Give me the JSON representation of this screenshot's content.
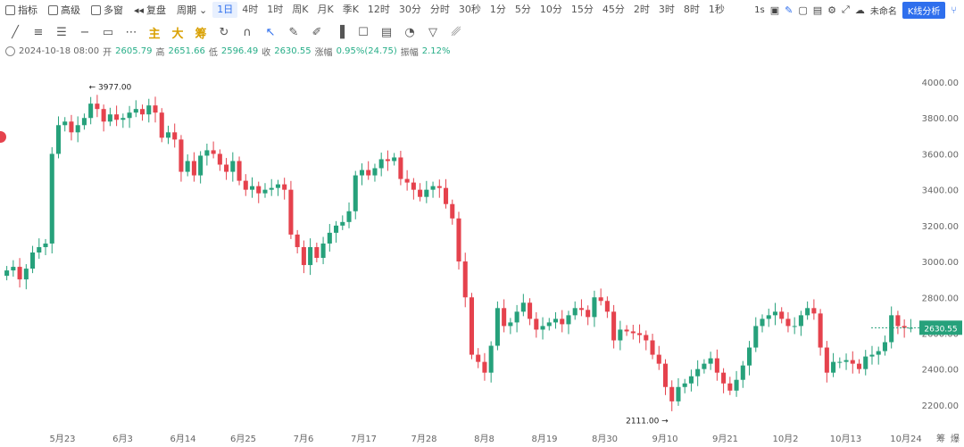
{
  "toolbar": {
    "indicator": "指标",
    "advanced": "高级",
    "multi_window": "多窗",
    "replay": "复盘",
    "period": "周期",
    "periods": [
      "1日",
      "4时",
      "1时",
      "周K",
      "月K",
      "季K",
      "12时",
      "30分",
      "分时",
      "30秒",
      "1分",
      "5分",
      "10分",
      "15分",
      "45分",
      "2时",
      "3时",
      "8时",
      "1秒"
    ],
    "active_period": "1日",
    "right_time": "1s",
    "unnamed": "未命名",
    "kline_analysis": "K线分析"
  },
  "drawing": {
    "labels": [
      "主",
      "大",
      "筹"
    ]
  },
  "info": {
    "date": "2024-10-18 08:00",
    "open_label": "开",
    "open": "2605.79",
    "high_label": "高",
    "high": "2651.66",
    "low_label": "低",
    "low": "2596.49",
    "close_label": "收",
    "close": "2630.55",
    "change_label": "涨幅",
    "change": "0.95%(24.75)",
    "amplitude_label": "振幅",
    "amplitude": "2.12%"
  },
  "chart_data": {
    "type": "candlestick",
    "y_ticks": [
      "4000.00",
      "3800.00",
      "3600.00",
      "3400.00",
      "3200.00",
      "3000.00",
      "2800.00",
      "2600.00",
      "2400.00",
      "2200.00"
    ],
    "x_ticks": [
      "5月23",
      "6月3",
      "6月14",
      "6月25",
      "7月6",
      "7月17",
      "7月28",
      "8月8",
      "8月19",
      "8月30",
      "9月10",
      "9月21",
      "10月2",
      "10月13",
      "10月24"
    ],
    "corner_labels": [
      "筹",
      "爆"
    ],
    "max_label": "← 3977.00",
    "min_label": "2111.00 →",
    "last_price": "2630.55",
    "colors": {
      "up": "#26a17b",
      "down": "#e5424d"
    },
    "closes": [
      2950,
      2970,
      2900,
      2960,
      3050,
      3080,
      3100,
      3600,
      3760,
      3780,
      3720,
      3760,
      3800,
      3880,
      3850,
      3780,
      3820,
      3790,
      3800,
      3830,
      3850,
      3820,
      3870,
      3830,
      3690,
      3720,
      3680,
      3500,
      3560,
      3480,
      3590,
      3620,
      3600,
      3540,
      3500,
      3560,
      3450,
      3400,
      3420,
      3380,
      3400,
      3410,
      3430,
      3400,
      3150,
      3080,
      2980,
      3080,
      3020,
      3100,
      3160,
      3200,
      3220,
      3280,
      3480,
      3510,
      3480,
      3520,
      3570,
      3560,
      3580,
      3460,
      3440,
      3400,
      3360,
      3400,
      3420,
      3410,
      3320,
      3240,
      3000,
      2800,
      2480,
      2440,
      2380,
      2530,
      2740,
      2640,
      2660,
      2720,
      2770,
      2680,
      2620,
      2640,
      2660,
      2680,
      2650,
      2700,
      2740,
      2730,
      2690,
      2800,
      2780,
      2720,
      2560,
      2620,
      2610,
      2600,
      2590,
      2560,
      2480,
      2430,
      2300,
      2220,
      2300,
      2320,
      2360,
      2400,
      2430,
      2460,
      2380,
      2320,
      2280,
      2340,
      2420,
      2520,
      2640,
      2680,
      2700,
      2720,
      2680,
      2640,
      2640,
      2700,
      2740,
      2710,
      2520,
      2380,
      2440,
      2440,
      2450,
      2430,
      2400,
      2470,
      2480,
      2500,
      2550,
      2700,
      2640,
      2630,
      2630
    ],
    "max_value": 3977,
    "min_value": 2111
  }
}
